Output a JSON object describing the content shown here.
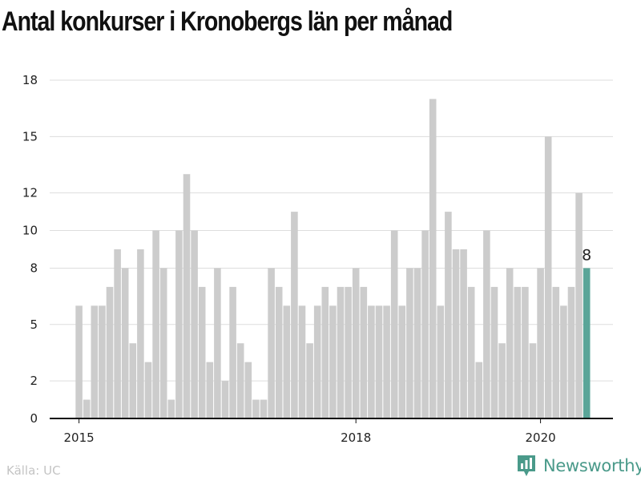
{
  "title": "Antal konkurser i Kronobergs län per månad",
  "source": "Källa: UC",
  "brand": {
    "name": "Newsworthy",
    "logo_icon": "bar-chart-icon",
    "color": "#4a9a8a"
  },
  "chart_data": {
    "type": "bar",
    "ylim": [
      0,
      18
    ],
    "yticks": [
      0,
      2,
      5,
      8,
      10,
      12,
      15,
      18
    ],
    "xticks": [
      "2015",
      "2018",
      "2020"
    ],
    "bar_color": "#cccccc",
    "highlight_color": "#5aa598",
    "highlight_label": "8",
    "grid": true,
    "values": [
      6,
      1,
      6,
      6,
      7,
      9,
      8,
      4,
      9,
      3,
      10,
      8,
      1,
      10,
      13,
      10,
      7,
      3,
      8,
      2,
      7,
      4,
      3,
      1,
      1,
      8,
      7,
      6,
      11,
      6,
      4,
      6,
      7,
      6,
      7,
      7,
      8,
      7,
      6,
      6,
      6,
      10,
      6,
      8,
      8,
      10,
      17,
      6,
      11,
      9,
      9,
      7,
      3,
      10,
      7,
      4,
      8,
      7,
      7,
      4,
      8,
      15,
      7,
      6,
      7,
      12,
      8
    ]
  }
}
